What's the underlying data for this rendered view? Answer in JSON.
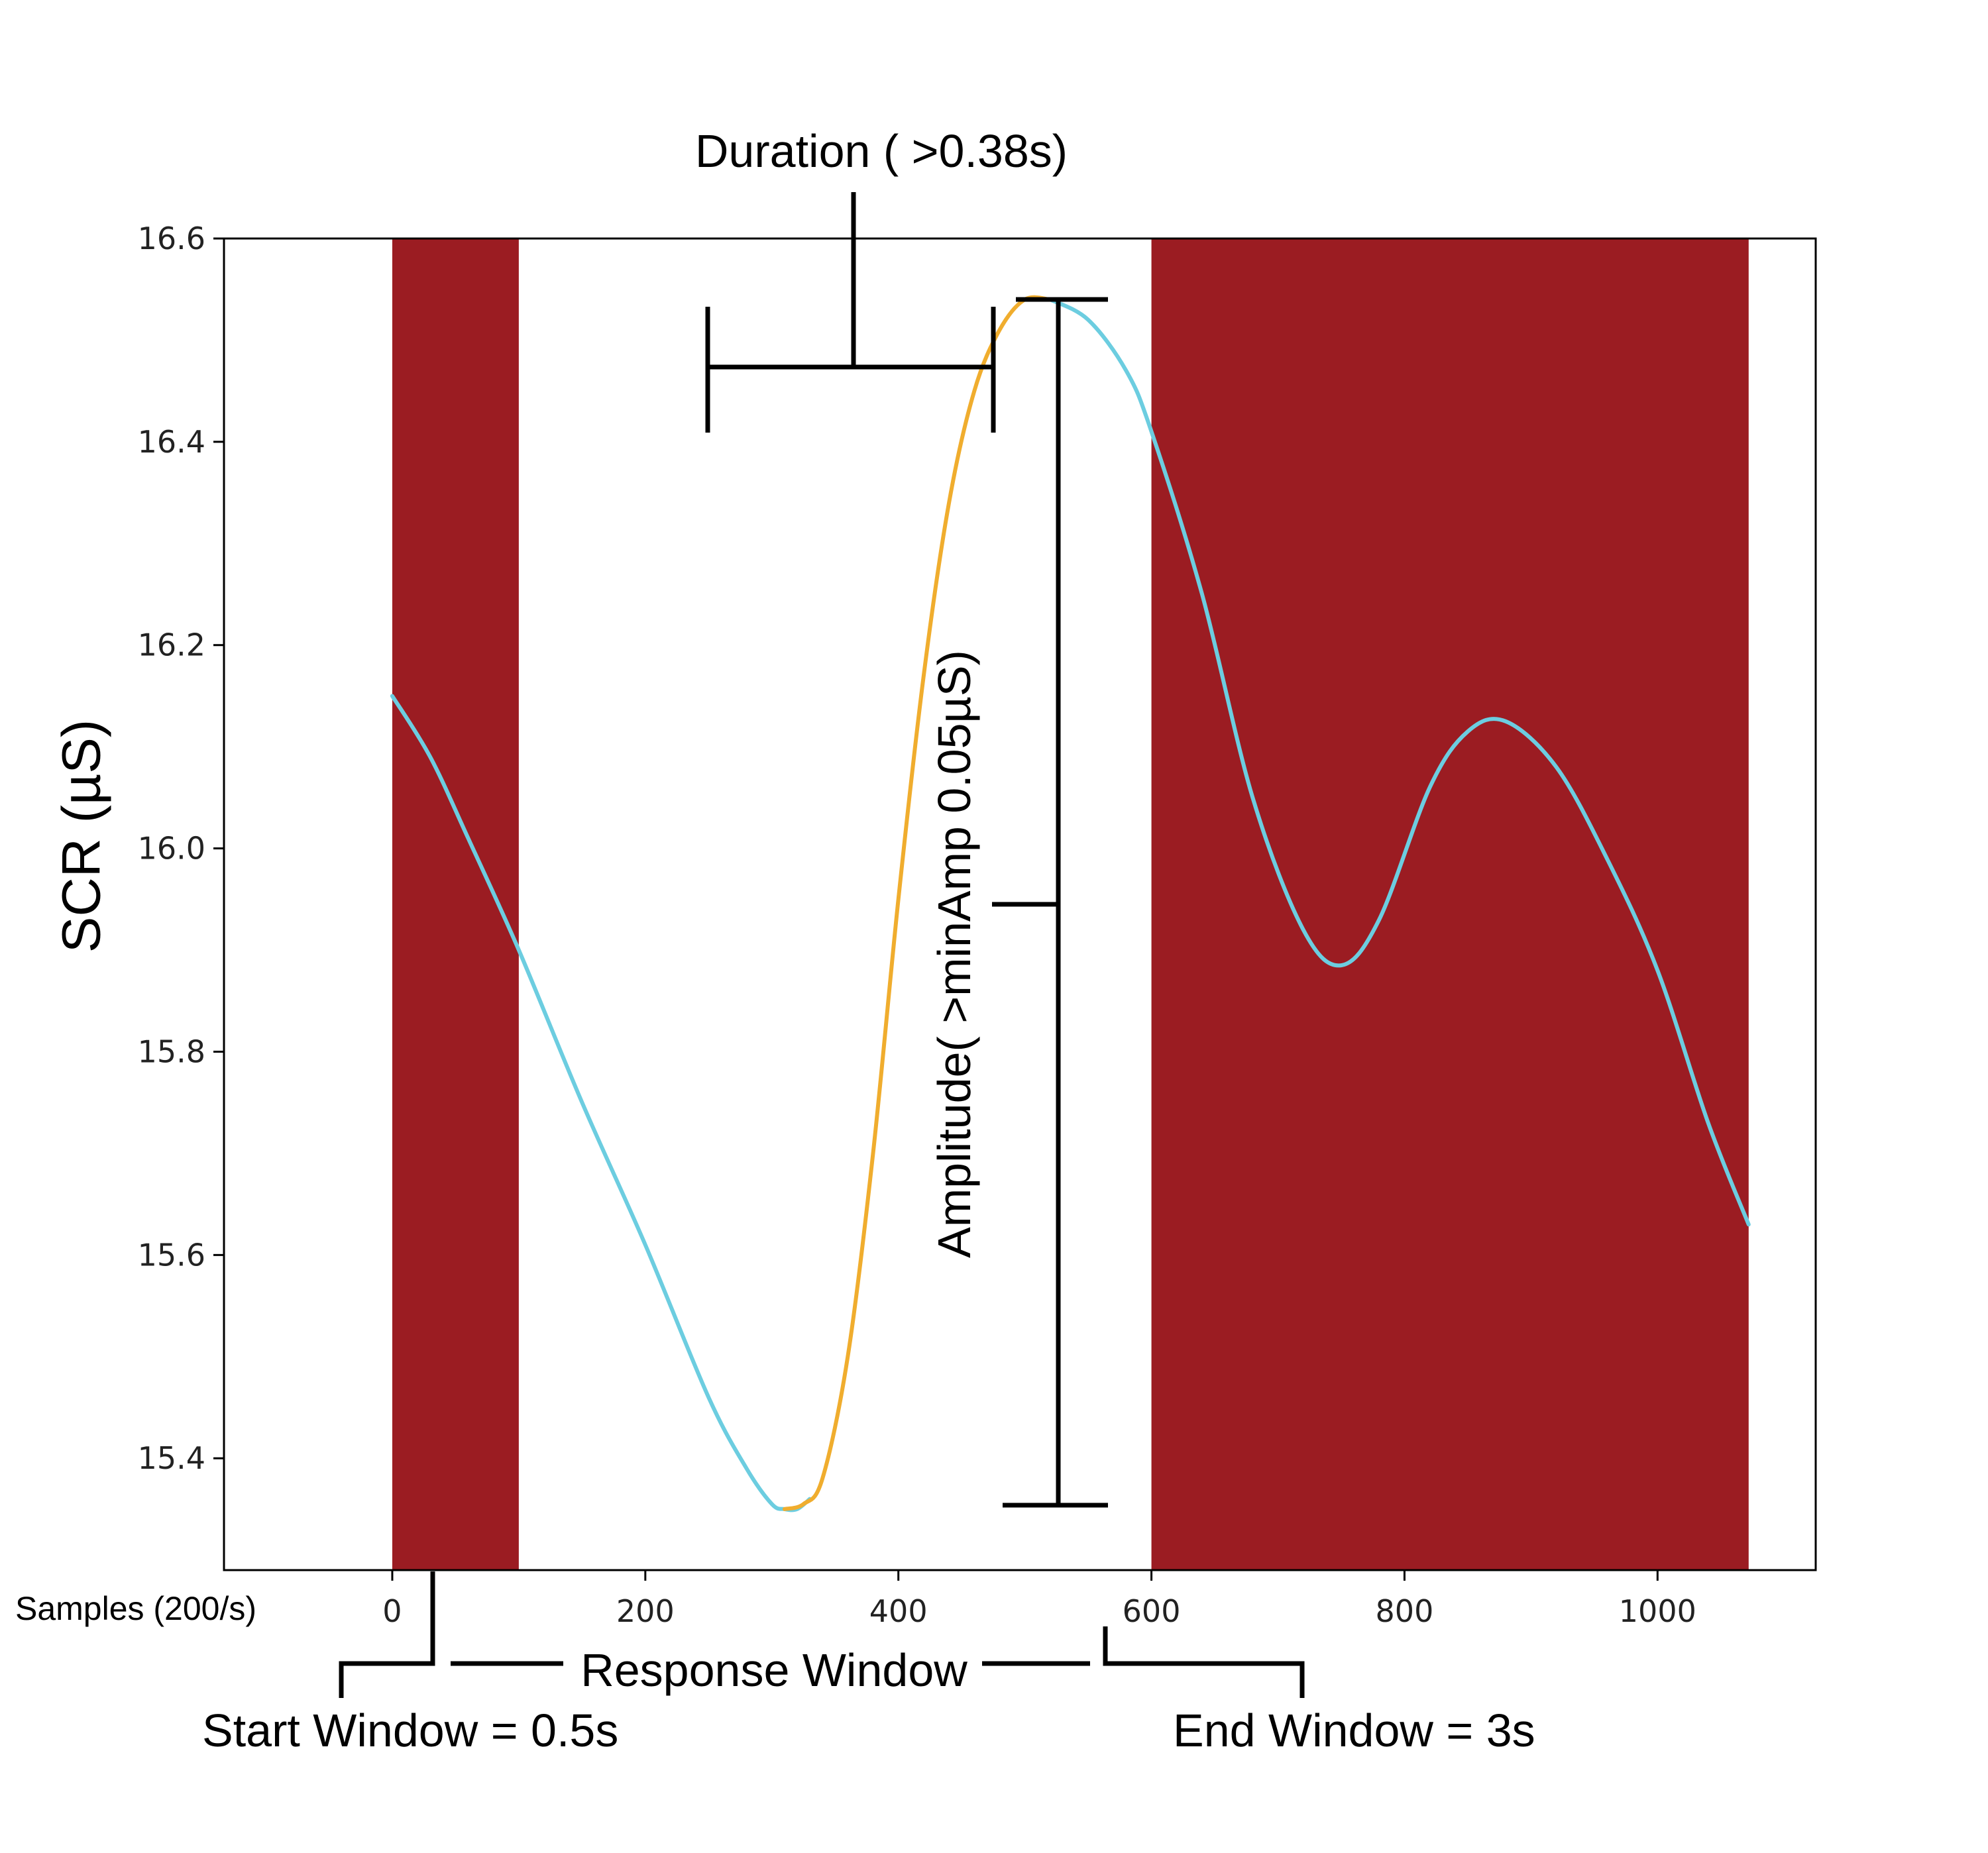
{
  "chart_data": {
    "type": "line",
    "title": "",
    "xlabel": "Samples (200/s)",
    "ylabel": "SCR (µS)",
    "xlim": [
      -133,
      1125
    ],
    "ylim": [
      15.29,
      16.6
    ],
    "xticks": [
      0,
      200,
      400,
      600,
      800,
      1000
    ],
    "yticks": [
      15.4,
      15.6,
      15.8,
      16.0,
      16.2,
      16.4,
      16.6
    ],
    "xtick_labels": [
      "0",
      "200",
      "400",
      "600",
      "800",
      "1000"
    ],
    "ytick_labels": [
      "15.4",
      "15.6",
      "15.8",
      "16.0",
      "16.2",
      "16.4",
      "16.6"
    ],
    "grid": false,
    "shaded_regions": [
      {
        "x": [
          0,
          100
        ],
        "color": "#9b1c22"
      },
      {
        "x": [
          600,
          1072
        ],
        "color": "#9b1c22"
      }
    ],
    "series": [
      {
        "color": "#6ccde0",
        "x": [
          0,
          30,
          60,
          100,
          150,
          200,
          250,
          280,
          300,
          310,
          320,
          330
        ],
        "y": [
          16.15,
          16.09,
          16.01,
          15.9,
          15.75,
          15.61,
          15.46,
          15.39,
          15.355,
          15.35,
          15.35,
          15.36
        ]
      },
      {
        "color": "#f0ad2e",
        "x": [
          310,
          325,
          340,
          360,
          380,
          400,
          420,
          440,
          460,
          480,
          500,
          520
        ],
        "y": [
          15.35,
          15.355,
          15.38,
          15.5,
          15.7,
          15.95,
          16.17,
          16.34,
          16.45,
          16.51,
          16.54,
          16.54
        ]
      },
      {
        "color": "#6ccde0",
        "x": [
          520,
          550,
          580,
          600,
          640,
          680,
          720,
          750,
          780,
          820,
          850,
          880,
          920,
          960,
          1000,
          1040,
          1072
        ],
        "y": [
          16.54,
          16.52,
          16.47,
          16.41,
          16.25,
          16.05,
          15.92,
          15.885,
          15.93,
          16.06,
          16.115,
          16.125,
          16.08,
          15.99,
          15.88,
          15.73,
          15.63
        ]
      }
    ]
  },
  "annotations": {
    "duration": "Duration ( >0.38s)",
    "amplitude": "Amplitude( >minAmp 0.05µS)",
    "response_window": "Response Window",
    "start_window": "Start Window = 0.5s",
    "end_window": "End Window = 3s"
  },
  "colors": {
    "shade": "#9b1c22",
    "curve": "#6ccde0",
    "rise": "#f0ad2e"
  }
}
